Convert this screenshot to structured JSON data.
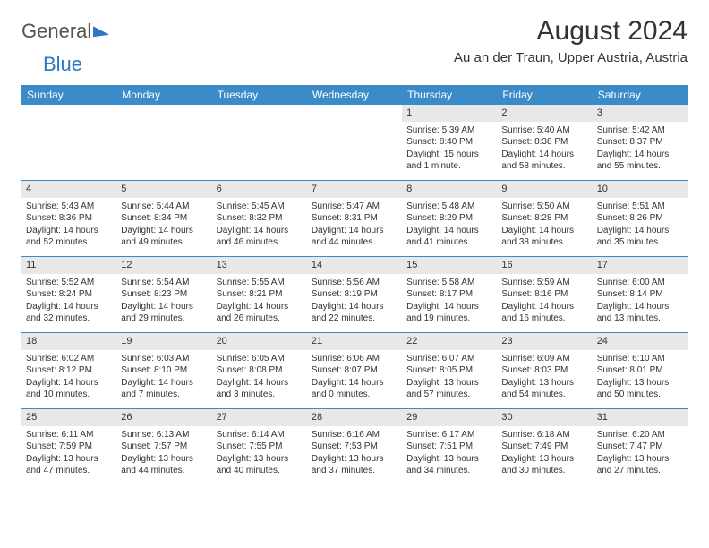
{
  "logo": {
    "word1": "General",
    "word2": "Blue"
  },
  "title": "August 2024",
  "location": "Au an der Traun, Upper Austria, Austria",
  "colors": {
    "header_bg": "#3b8bc9",
    "daynum_bg": "#e8e8e8",
    "divider": "#3b8bc9",
    "text": "#333333",
    "logo_blue": "#2b79c2"
  },
  "weekdays": [
    "Sunday",
    "Monday",
    "Tuesday",
    "Wednesday",
    "Thursday",
    "Friday",
    "Saturday"
  ],
  "weeks": [
    [
      {
        "n": "",
        "sr": "",
        "ss": "",
        "dl1": "",
        "dl2": ""
      },
      {
        "n": "",
        "sr": "",
        "ss": "",
        "dl1": "",
        "dl2": ""
      },
      {
        "n": "",
        "sr": "",
        "ss": "",
        "dl1": "",
        "dl2": ""
      },
      {
        "n": "",
        "sr": "",
        "ss": "",
        "dl1": "",
        "dl2": ""
      },
      {
        "n": "1",
        "sr": "Sunrise: 5:39 AM",
        "ss": "Sunset: 8:40 PM",
        "dl1": "Daylight: 15 hours",
        "dl2": "and 1 minute."
      },
      {
        "n": "2",
        "sr": "Sunrise: 5:40 AM",
        "ss": "Sunset: 8:38 PM",
        "dl1": "Daylight: 14 hours",
        "dl2": "and 58 minutes."
      },
      {
        "n": "3",
        "sr": "Sunrise: 5:42 AM",
        "ss": "Sunset: 8:37 PM",
        "dl1": "Daylight: 14 hours",
        "dl2": "and 55 minutes."
      }
    ],
    [
      {
        "n": "4",
        "sr": "Sunrise: 5:43 AM",
        "ss": "Sunset: 8:36 PM",
        "dl1": "Daylight: 14 hours",
        "dl2": "and 52 minutes."
      },
      {
        "n": "5",
        "sr": "Sunrise: 5:44 AM",
        "ss": "Sunset: 8:34 PM",
        "dl1": "Daylight: 14 hours",
        "dl2": "and 49 minutes."
      },
      {
        "n": "6",
        "sr": "Sunrise: 5:45 AM",
        "ss": "Sunset: 8:32 PM",
        "dl1": "Daylight: 14 hours",
        "dl2": "and 46 minutes."
      },
      {
        "n": "7",
        "sr": "Sunrise: 5:47 AM",
        "ss": "Sunset: 8:31 PM",
        "dl1": "Daylight: 14 hours",
        "dl2": "and 44 minutes."
      },
      {
        "n": "8",
        "sr": "Sunrise: 5:48 AM",
        "ss": "Sunset: 8:29 PM",
        "dl1": "Daylight: 14 hours",
        "dl2": "and 41 minutes."
      },
      {
        "n": "9",
        "sr": "Sunrise: 5:50 AM",
        "ss": "Sunset: 8:28 PM",
        "dl1": "Daylight: 14 hours",
        "dl2": "and 38 minutes."
      },
      {
        "n": "10",
        "sr": "Sunrise: 5:51 AM",
        "ss": "Sunset: 8:26 PM",
        "dl1": "Daylight: 14 hours",
        "dl2": "and 35 minutes."
      }
    ],
    [
      {
        "n": "11",
        "sr": "Sunrise: 5:52 AM",
        "ss": "Sunset: 8:24 PM",
        "dl1": "Daylight: 14 hours",
        "dl2": "and 32 minutes."
      },
      {
        "n": "12",
        "sr": "Sunrise: 5:54 AM",
        "ss": "Sunset: 8:23 PM",
        "dl1": "Daylight: 14 hours",
        "dl2": "and 29 minutes."
      },
      {
        "n": "13",
        "sr": "Sunrise: 5:55 AM",
        "ss": "Sunset: 8:21 PM",
        "dl1": "Daylight: 14 hours",
        "dl2": "and 26 minutes."
      },
      {
        "n": "14",
        "sr": "Sunrise: 5:56 AM",
        "ss": "Sunset: 8:19 PM",
        "dl1": "Daylight: 14 hours",
        "dl2": "and 22 minutes."
      },
      {
        "n": "15",
        "sr": "Sunrise: 5:58 AM",
        "ss": "Sunset: 8:17 PM",
        "dl1": "Daylight: 14 hours",
        "dl2": "and 19 minutes."
      },
      {
        "n": "16",
        "sr": "Sunrise: 5:59 AM",
        "ss": "Sunset: 8:16 PM",
        "dl1": "Daylight: 14 hours",
        "dl2": "and 16 minutes."
      },
      {
        "n": "17",
        "sr": "Sunrise: 6:00 AM",
        "ss": "Sunset: 8:14 PM",
        "dl1": "Daylight: 14 hours",
        "dl2": "and 13 minutes."
      }
    ],
    [
      {
        "n": "18",
        "sr": "Sunrise: 6:02 AM",
        "ss": "Sunset: 8:12 PM",
        "dl1": "Daylight: 14 hours",
        "dl2": "and 10 minutes."
      },
      {
        "n": "19",
        "sr": "Sunrise: 6:03 AM",
        "ss": "Sunset: 8:10 PM",
        "dl1": "Daylight: 14 hours",
        "dl2": "and 7 minutes."
      },
      {
        "n": "20",
        "sr": "Sunrise: 6:05 AM",
        "ss": "Sunset: 8:08 PM",
        "dl1": "Daylight: 14 hours",
        "dl2": "and 3 minutes."
      },
      {
        "n": "21",
        "sr": "Sunrise: 6:06 AM",
        "ss": "Sunset: 8:07 PM",
        "dl1": "Daylight: 14 hours",
        "dl2": "and 0 minutes."
      },
      {
        "n": "22",
        "sr": "Sunrise: 6:07 AM",
        "ss": "Sunset: 8:05 PM",
        "dl1": "Daylight: 13 hours",
        "dl2": "and 57 minutes."
      },
      {
        "n": "23",
        "sr": "Sunrise: 6:09 AM",
        "ss": "Sunset: 8:03 PM",
        "dl1": "Daylight: 13 hours",
        "dl2": "and 54 minutes."
      },
      {
        "n": "24",
        "sr": "Sunrise: 6:10 AM",
        "ss": "Sunset: 8:01 PM",
        "dl1": "Daylight: 13 hours",
        "dl2": "and 50 minutes."
      }
    ],
    [
      {
        "n": "25",
        "sr": "Sunrise: 6:11 AM",
        "ss": "Sunset: 7:59 PM",
        "dl1": "Daylight: 13 hours",
        "dl2": "and 47 minutes."
      },
      {
        "n": "26",
        "sr": "Sunrise: 6:13 AM",
        "ss": "Sunset: 7:57 PM",
        "dl1": "Daylight: 13 hours",
        "dl2": "and 44 minutes."
      },
      {
        "n": "27",
        "sr": "Sunrise: 6:14 AM",
        "ss": "Sunset: 7:55 PM",
        "dl1": "Daylight: 13 hours",
        "dl2": "and 40 minutes."
      },
      {
        "n": "28",
        "sr": "Sunrise: 6:16 AM",
        "ss": "Sunset: 7:53 PM",
        "dl1": "Daylight: 13 hours",
        "dl2": "and 37 minutes."
      },
      {
        "n": "29",
        "sr": "Sunrise: 6:17 AM",
        "ss": "Sunset: 7:51 PM",
        "dl1": "Daylight: 13 hours",
        "dl2": "and 34 minutes."
      },
      {
        "n": "30",
        "sr": "Sunrise: 6:18 AM",
        "ss": "Sunset: 7:49 PM",
        "dl1": "Daylight: 13 hours",
        "dl2": "and 30 minutes."
      },
      {
        "n": "31",
        "sr": "Sunrise: 6:20 AM",
        "ss": "Sunset: 7:47 PM",
        "dl1": "Daylight: 13 hours",
        "dl2": "and 27 minutes."
      }
    ]
  ]
}
